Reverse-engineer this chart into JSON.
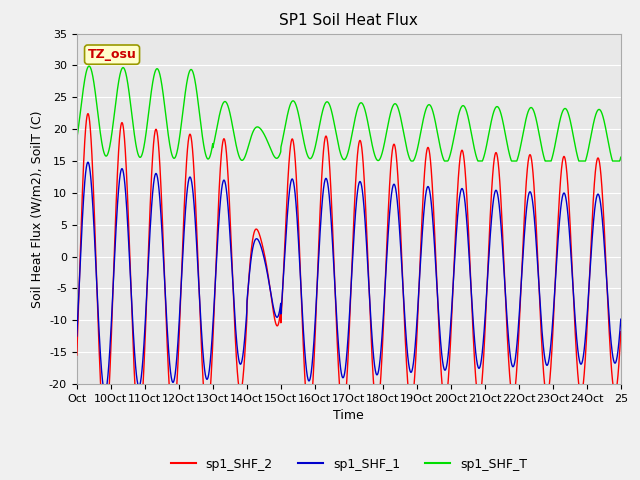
{
  "title": "SP1 Soil Heat Flux",
  "xlabel": "Time",
  "ylabel": "Soil Heat Flux (W/m2), SoilT (C)",
  "ylim": [
    -20,
    35
  ],
  "xlim_start": 0,
  "xlim_end": 16,
  "xtick_labels": [
    "Oct",
    "10Oct",
    "11Oct",
    "12Oct",
    "13Oct",
    "14Oct",
    "15Oct",
    "16Oct",
    "17Oct",
    "18Oct",
    "19Oct",
    "20Oct",
    "21Oct",
    "22Oct",
    "23Oct",
    "24Oct",
    "25"
  ],
  "xtick_positions": [
    0,
    1,
    2,
    3,
    4,
    5,
    6,
    7,
    8,
    9,
    10,
    11,
    12,
    13,
    14,
    15,
    16
  ],
  "legend_labels": [
    "sp1_SHF_2",
    "sp1_SHF_1",
    "sp1_SHF_T"
  ],
  "color_shf2": "#ff0000",
  "color_shf1": "#0000cc",
  "color_shfT": "#00dd00",
  "annotation_text": "TZ_osu",
  "annotation_color": "#cc0000",
  "annotation_bg": "#ffffcc",
  "plot_bg": "#e8e8e8",
  "fig_bg": "#f0f0f0",
  "grid_color": "#ffffff",
  "title_fontsize": 11,
  "axis_label_fontsize": 9,
  "tick_fontsize": 8,
  "legend_fontsize": 9
}
